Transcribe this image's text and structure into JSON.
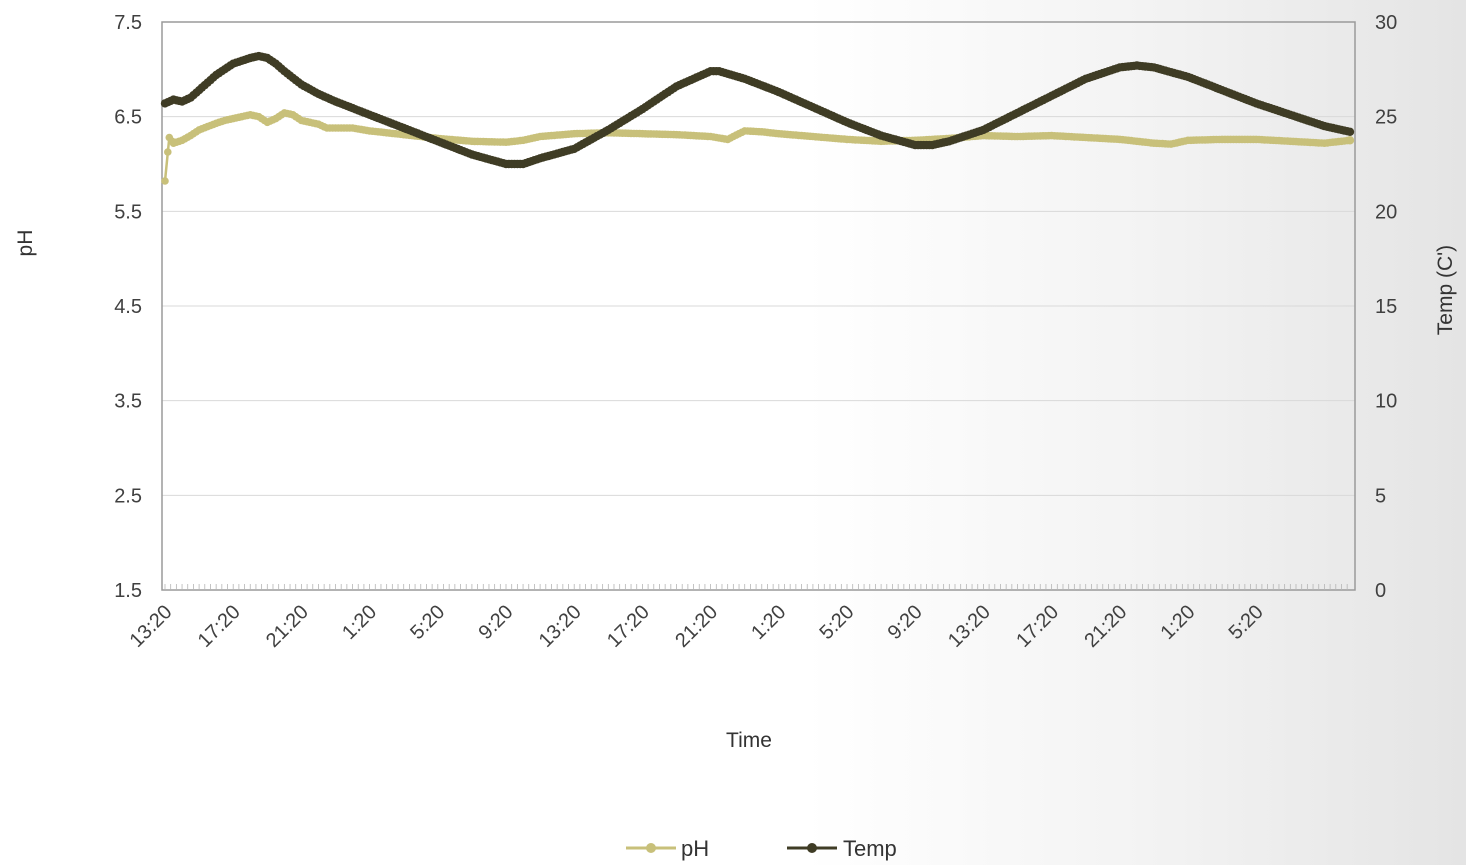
{
  "chart_data": {
    "type": "line",
    "xlabel": "Time",
    "ylabel_left": "pH",
    "ylabel_right": "Temp (C')",
    "ylim_left": [
      1.5,
      7.5
    ],
    "yticks_left": [
      "7.5",
      "6.5",
      "5.5",
      "4.5",
      "3.5",
      "2.5",
      "1.5"
    ],
    "ylim_right": [
      0,
      30
    ],
    "yticks_right": [
      "30",
      "25",
      "20",
      "15",
      "10",
      "5",
      "0"
    ],
    "x_tick_labels": [
      "13:20",
      "17:20",
      "21:20",
      "1:20",
      "5:20",
      "9:20",
      "13:20",
      "17:20",
      "21:20",
      "1:20",
      "5:20",
      "9:20",
      "13:20",
      "17:20",
      "21:20",
      "1:20",
      "5:20"
    ],
    "x_tick_hours": [
      0,
      4,
      8,
      12,
      16,
      20,
      24,
      28,
      32,
      36,
      40,
      44,
      48,
      52,
      56,
      60,
      64
    ],
    "x_range_hours": [
      0,
      69.5
    ],
    "grid": "horizontal",
    "legend_position": "bottom",
    "series": [
      {
        "name": "pH",
        "axis": "left",
        "color": "#c8c07a",
        "points": [
          [
            0,
            5.82
          ],
          [
            0.25,
            6.28
          ],
          [
            0.5,
            6.22
          ],
          [
            1,
            6.25
          ],
          [
            1.5,
            6.3
          ],
          [
            2,
            6.36
          ],
          [
            3,
            6.43
          ],
          [
            3.5,
            6.46
          ],
          [
            4,
            6.48
          ],
          [
            5,
            6.52
          ],
          [
            5.5,
            6.5
          ],
          [
            6,
            6.44
          ],
          [
            6.5,
            6.48
          ],
          [
            7,
            6.54
          ],
          [
            7.5,
            6.52
          ],
          [
            8,
            6.46
          ],
          [
            9,
            6.42
          ],
          [
            9.5,
            6.38
          ],
          [
            10,
            6.38
          ],
          [
            11,
            6.38
          ],
          [
            12,
            6.35
          ],
          [
            14,
            6.31
          ],
          [
            16,
            6.27
          ],
          [
            18,
            6.24
          ],
          [
            20,
            6.23
          ],
          [
            21,
            6.25
          ],
          [
            22,
            6.29
          ],
          [
            24,
            6.32
          ],
          [
            26,
            6.33
          ],
          [
            28,
            6.32
          ],
          [
            30,
            6.31
          ],
          [
            32,
            6.29
          ],
          [
            33,
            6.26
          ],
          [
            34,
            6.35
          ],
          [
            35,
            6.34
          ],
          [
            36,
            6.32
          ],
          [
            38,
            6.29
          ],
          [
            40,
            6.26
          ],
          [
            42,
            6.24
          ],
          [
            44,
            6.25
          ],
          [
            46,
            6.27
          ],
          [
            48,
            6.3
          ],
          [
            50,
            6.29
          ],
          [
            52,
            6.3
          ],
          [
            54,
            6.28
          ],
          [
            56,
            6.26
          ],
          [
            58,
            6.22
          ],
          [
            59,
            6.21
          ],
          [
            60,
            6.25
          ],
          [
            62,
            6.26
          ],
          [
            64,
            6.26
          ],
          [
            66,
            6.24
          ],
          [
            68,
            6.22
          ],
          [
            69.5,
            6.25
          ]
        ]
      },
      {
        "name": "Temp",
        "axis": "right",
        "color": "#3f3c25",
        "points": [
          [
            0,
            25.7
          ],
          [
            0.5,
            25.9
          ],
          [
            1,
            25.8
          ],
          [
            1.5,
            26
          ],
          [
            2,
            26.4
          ],
          [
            3,
            27.2
          ],
          [
            4,
            27.8
          ],
          [
            5,
            28.1
          ],
          [
            5.5,
            28.2
          ],
          [
            6,
            28.1
          ],
          [
            6.5,
            27.8
          ],
          [
            7,
            27.4
          ],
          [
            8,
            26.7
          ],
          [
            9,
            26.2
          ],
          [
            10,
            25.8
          ],
          [
            12,
            25.1
          ],
          [
            14,
            24.4
          ],
          [
            16,
            23.7
          ],
          [
            18,
            23
          ],
          [
            20,
            22.5
          ],
          [
            21,
            22.5
          ],
          [
            22,
            22.8
          ],
          [
            24,
            23.3
          ],
          [
            26,
            24.3
          ],
          [
            28,
            25.4
          ],
          [
            30,
            26.6
          ],
          [
            32,
            27.4
          ],
          [
            32.5,
            27.4
          ],
          [
            34,
            27
          ],
          [
            36,
            26.3
          ],
          [
            38,
            25.5
          ],
          [
            40,
            24.7
          ],
          [
            42,
            24
          ],
          [
            44,
            23.5
          ],
          [
            45,
            23.5
          ],
          [
            46,
            23.7
          ],
          [
            48,
            24.3
          ],
          [
            50,
            25.2
          ],
          [
            52,
            26.1
          ],
          [
            54,
            27
          ],
          [
            56,
            27.6
          ],
          [
            57,
            27.7
          ],
          [
            58,
            27.6
          ],
          [
            60,
            27.1
          ],
          [
            62,
            26.4
          ],
          [
            64,
            25.7
          ],
          [
            66,
            25.1
          ],
          [
            68,
            24.5
          ],
          [
            69.5,
            24.2
          ]
        ]
      }
    ]
  }
}
